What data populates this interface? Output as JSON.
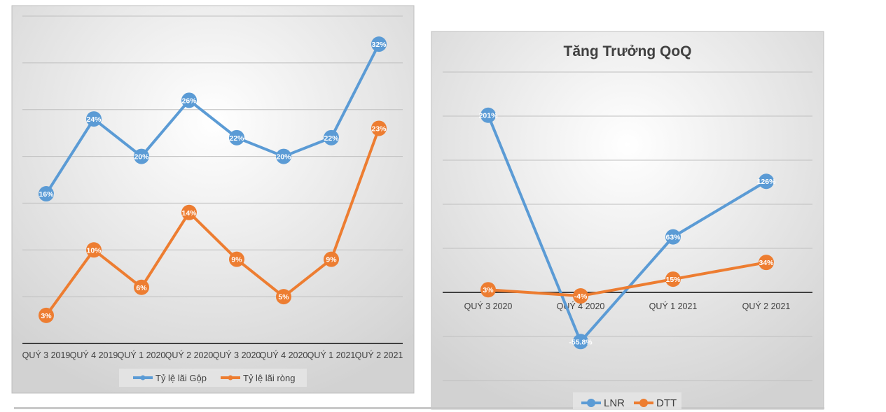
{
  "colors": {
    "blue": "#5b9bd5",
    "orange": "#ed7d31"
  },
  "chart_data": [
    {
      "type": "line",
      "title": "",
      "categories": [
        "QUÝ 3 2019",
        "QUÝ 4 2019",
        "QUÝ 1 2020",
        "QUÝ 2 2020",
        "QUÝ 3 2020",
        "QUÝ 4 2020",
        "QUÝ 1 2021",
        "QUÝ 2 2021"
      ],
      "series": [
        {
          "name": "Tỷ lệ lãi Gộp",
          "values": [
            16,
            24,
            20,
            26,
            22,
            20,
            22,
            32
          ],
          "labels": [
            "16%",
            "24%",
            "20%",
            "26%",
            "22%",
            "20%",
            "22%",
            "32%"
          ]
        },
        {
          "name": "Tỷ lệ lãi ròng",
          "values": [
            3,
            10,
            6,
            14,
            9,
            5,
            9,
            23
          ],
          "labels": [
            "3%",
            "10%",
            "6%",
            "14%",
            "9%",
            "5%",
            "9%",
            "23%"
          ]
        }
      ],
      "ylim": [
        0,
        35
      ],
      "grid": true,
      "legend": "bottom"
    },
    {
      "type": "line",
      "title": "Tăng Trưởng QoQ",
      "categories": [
        "QUÝ 3 2020",
        "QUÝ 4 2020",
        "QUÝ 1 2021",
        "QUÝ 2 2021"
      ],
      "series": [
        {
          "name": "LNR",
          "values": [
            201,
            -55.8,
            63,
            126
          ],
          "labels": [
            "201%",
            "-55.8%",
            "63%",
            "126%"
          ]
        },
        {
          "name": "DTT",
          "values": [
            3,
            -4,
            15,
            34
          ],
          "labels": [
            "3%",
            "-4%",
            "15%",
            "34%"
          ]
        }
      ],
      "ylim": [
        -100,
        250
      ],
      "grid": true,
      "legend": "bottom"
    }
  ]
}
